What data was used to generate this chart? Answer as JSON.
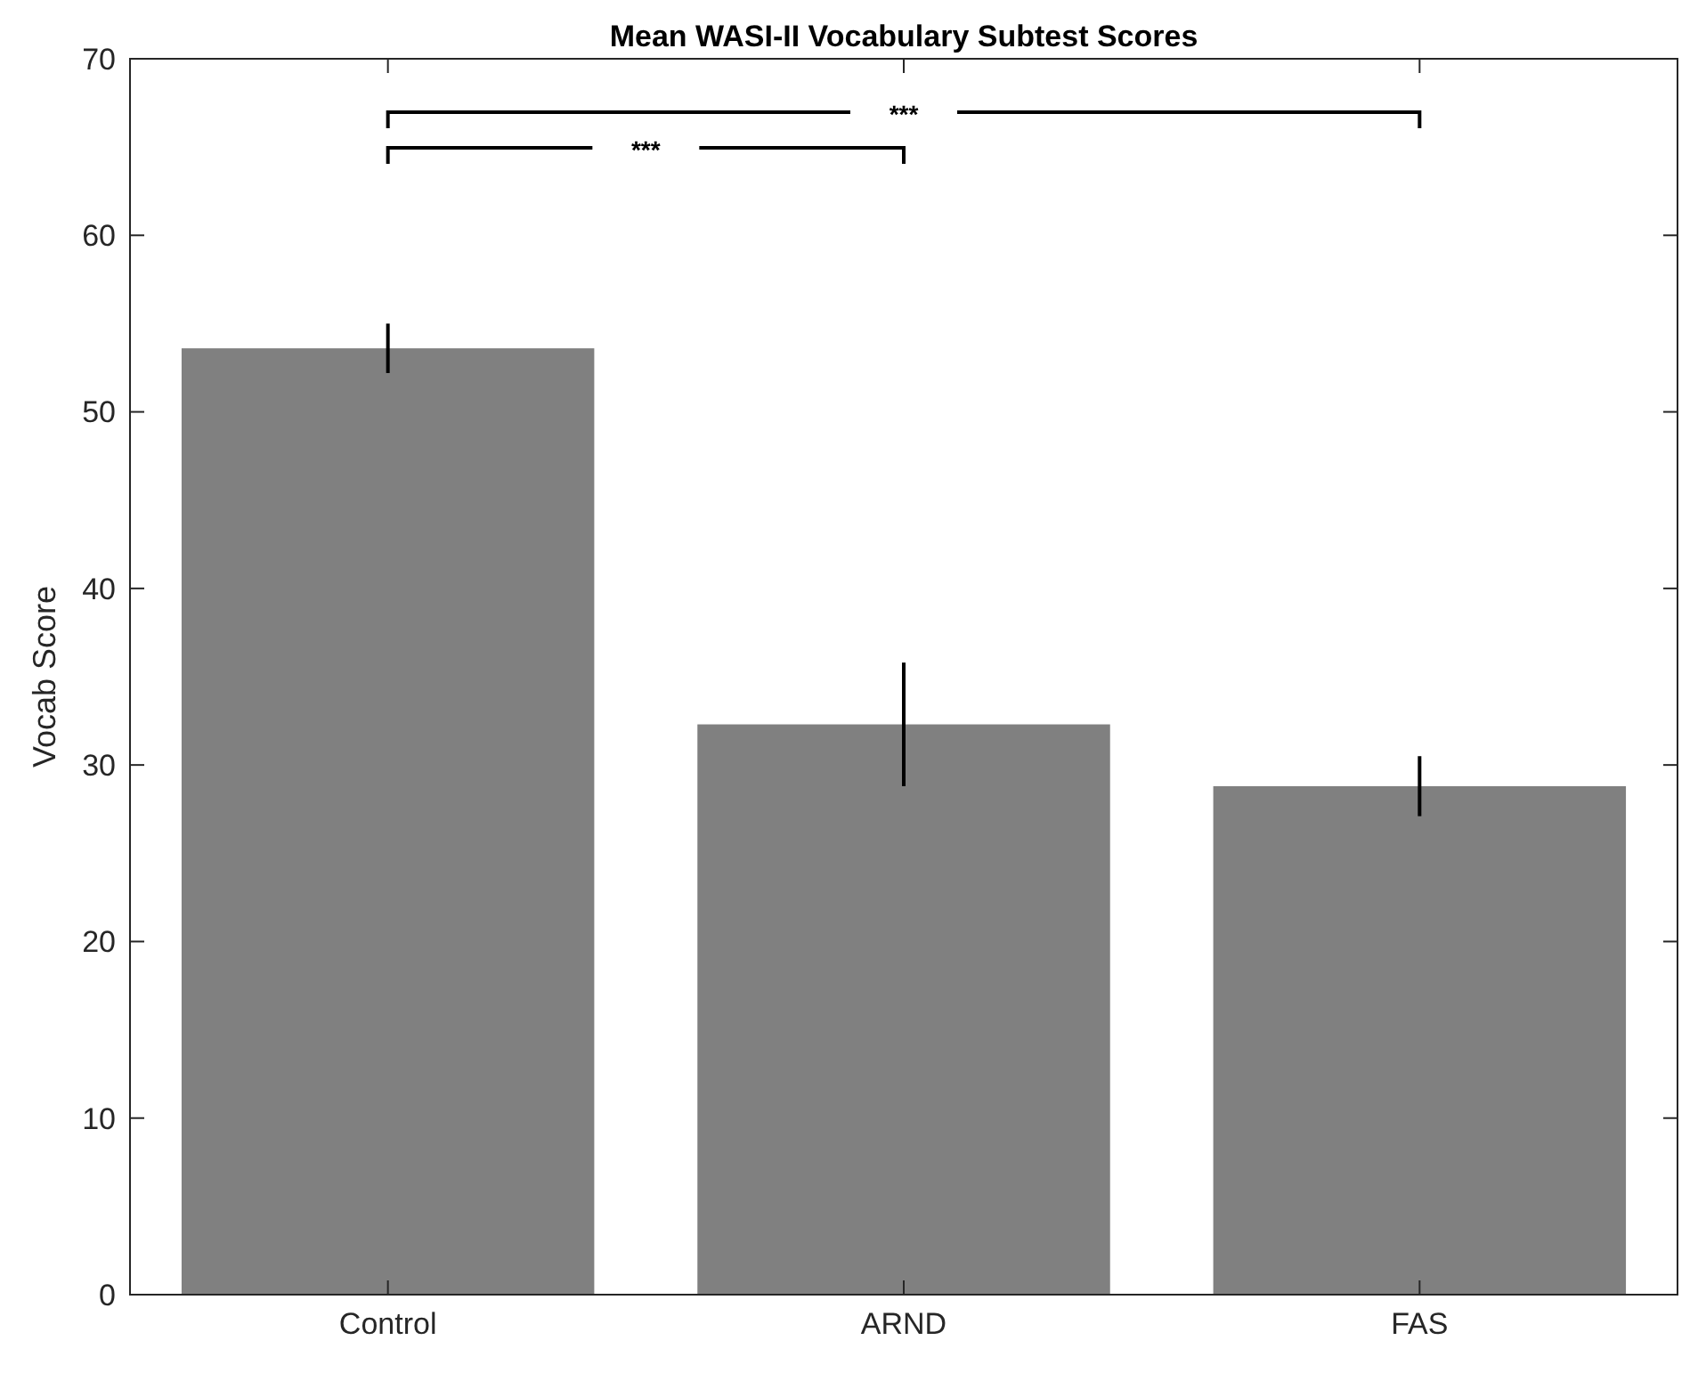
{
  "chart_data": {
    "type": "bar",
    "title": "Mean WASI-II Vocabulary Subtest Scores",
    "ylabel": "Vocab Score",
    "categories": [
      "Control",
      "ARND",
      "FAS"
    ],
    "values": [
      53.6,
      32.3,
      28.8
    ],
    "errors": [
      1.4,
      3.5,
      1.7
    ],
    "color": "#808080",
    "ylim": [
      0,
      70
    ],
    "yticks": [
      0,
      10,
      20,
      30,
      40,
      50,
      60,
      70
    ],
    "annotations": [
      "***",
      "***"
    ]
  }
}
